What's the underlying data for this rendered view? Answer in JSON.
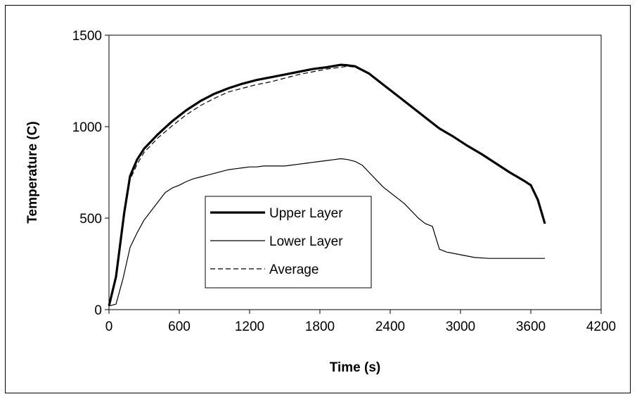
{
  "chart_data": {
    "type": "line",
    "title": "",
    "xlabel": "Time (s)",
    "ylabel": "Temperature (C)",
    "xlim": [
      0,
      4200
    ],
    "ylim": [
      0,
      1500
    ],
    "x_ticks": [
      0,
      600,
      1200,
      1800,
      2400,
      3000,
      3600,
      4200
    ],
    "y_ticks": [
      0,
      500,
      1000,
      1500
    ],
    "grid": false,
    "legend_position": "center-left",
    "series": [
      {
        "name": "Upper Layer",
        "style": "thick-solid",
        "color": "#000000",
        "x": [
          0,
          60,
          130,
          180,
          240,
          300,
          420,
          540,
          660,
          780,
          900,
          1020,
          1140,
          1260,
          1380,
          1500,
          1620,
          1740,
          1860,
          1980,
          2040,
          2100,
          2220,
          2340,
          2460,
          2580,
          2700,
          2820,
          2940,
          3060,
          3180,
          3300,
          3420,
          3540,
          3600,
          3660,
          3720
        ],
        "y": [
          20,
          180,
          530,
          730,
          820,
          880,
          960,
          1030,
          1090,
          1140,
          1180,
          1210,
          1235,
          1255,
          1270,
          1285,
          1300,
          1315,
          1325,
          1338,
          1335,
          1330,
          1290,
          1230,
          1170,
          1110,
          1050,
          990,
          945,
          895,
          850,
          800,
          750,
          705,
          680,
          600,
          470
        ]
      },
      {
        "name": "Lower Layer",
        "style": "thin-solid",
        "color": "#000000",
        "x": [
          0,
          60,
          120,
          180,
          240,
          300,
          360,
          420,
          480,
          540,
          600,
          660,
          720,
          780,
          840,
          900,
          960,
          1020,
          1080,
          1140,
          1200,
          1260,
          1320,
          1380,
          1440,
          1500,
          1560,
          1620,
          1680,
          1740,
          1800,
          1860,
          1920,
          1980,
          2040,
          2100,
          2160,
          2220,
          2280,
          2340,
          2400,
          2520,
          2640,
          2700,
          2760,
          2820,
          2880,
          3000,
          3120,
          3240,
          3360,
          3480,
          3600,
          3720
        ],
        "y": [
          20,
          30,
          170,
          340,
          420,
          490,
          540,
          590,
          640,
          665,
          680,
          700,
          715,
          725,
          735,
          745,
          755,
          765,
          770,
          775,
          780,
          780,
          785,
          785,
          785,
          785,
          790,
          795,
          800,
          805,
          810,
          815,
          820,
          825,
          820,
          810,
          790,
          750,
          710,
          670,
          640,
          580,
          500,
          470,
          455,
          330,
          315,
          300,
          285,
          280,
          280,
          280,
          280,
          280
        ]
      },
      {
        "name": "Average",
        "style": "dashed",
        "color": "#000000",
        "x": [
          0,
          60,
          130,
          180,
          240,
          300,
          420,
          540,
          660,
          780,
          900,
          1020,
          1140,
          1260,
          1380,
          1500,
          1620,
          1740,
          1860,
          1980,
          2040,
          2100,
          2220,
          2340,
          2460,
          2580,
          2700,
          2820,
          2940,
          3060,
          3180,
          3300,
          3420,
          3540,
          3600,
          3660,
          3720
        ],
        "y": [
          20,
          170,
          510,
          710,
          795,
          860,
          940,
          1005,
          1065,
          1115,
          1155,
          1190,
          1210,
          1230,
          1245,
          1265,
          1285,
          1300,
          1315,
          1325,
          1330,
          1325,
          1290,
          1230,
          1170,
          1110,
          1050,
          990,
          945,
          895,
          850,
          800,
          750,
          705,
          680,
          600,
          470
        ]
      }
    ]
  }
}
